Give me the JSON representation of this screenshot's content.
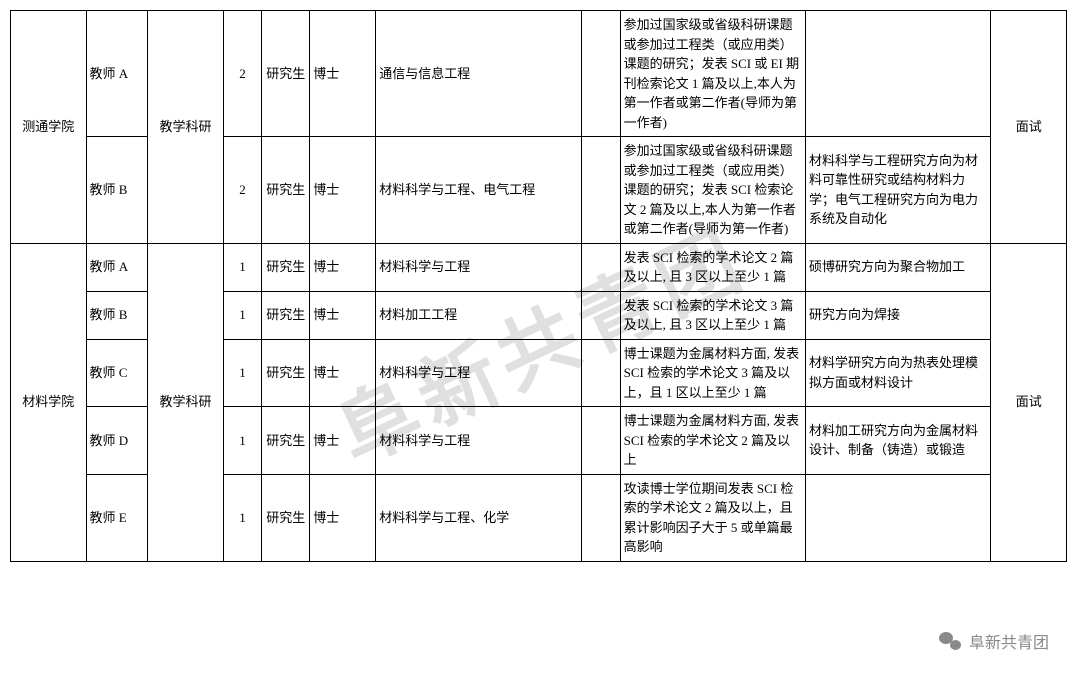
{
  "watermark_text": "阜新共青团",
  "footer_text": "阜新共青团",
  "colgroups": [
    55,
    45,
    55,
    28,
    35,
    48,
    150,
    28,
    135,
    135,
    55
  ],
  "table": {
    "groups": [
      {
        "dept": "测通学院",
        "category": "教学科研",
        "interview": "面试",
        "rows": [
          {
            "role": "教师 A",
            "count": "2",
            "level": "研究生",
            "degree": "博士",
            "major": "通信与信息工程",
            "col7": "",
            "req": "参加过国家级或省级科研课题或参加过工程类（或应用类）课题的研究；发表 SCI 或 EI 期刊检索论文 1 篇及以上,本人为第一作者或第二作者(导师为第一作者)",
            "note": ""
          },
          {
            "role": "教师 B",
            "count": "2",
            "level": "研究生",
            "degree": "博士",
            "major": "材料科学与工程、电气工程",
            "col7": "",
            "req": "参加过国家级或省级科研课题或参加过工程类（或应用类）课题的研究；发表 SCI 检索论文 2 篇及以上,本人为第一作者或第二作者(导师为第一作者)",
            "note": "材料科学与工程研究方向为材料可靠性研究或结构材料力学；电气工程研究方向为电力系统及自动化"
          }
        ]
      },
      {
        "dept": "材料学院",
        "category": "教学科研",
        "interview": "面试",
        "rows": [
          {
            "role": "教师 A",
            "count": "1",
            "level": "研究生",
            "degree": "博士",
            "major": "材料科学与工程",
            "col7": "",
            "req": "发表 SCI 检索的学术论文 2 篇及以上, 且 3 区以上至少 1 篇",
            "note": "硕博研究方向为聚合物加工"
          },
          {
            "role": "教师 B",
            "count": "1",
            "level": "研究生",
            "degree": "博士",
            "major": "材料加工工程",
            "col7": "",
            "req": "发表 SCI 检索的学术论文 3 篇及以上, 且 3 区以上至少 1 篇",
            "note": "研究方向为焊接"
          },
          {
            "role": "教师 C",
            "count": "1",
            "level": "研究生",
            "degree": "博士",
            "major": "材料科学与工程",
            "col7": "",
            "req": "博士课题为金属材料方面, 发表 SCI 检索的学术论文 3 篇及以上，且 1 区以上至少 1 篇",
            "note": "材料学研究方向为热表处理模拟方面或材料设计"
          },
          {
            "role": "教师 D",
            "count": "1",
            "level": "研究生",
            "degree": "博士",
            "major": "材料科学与工程",
            "col7": "",
            "req": "博士课题为金属材料方面, 发表 SCI 检索的学术论文 2 篇及以上",
            "note": "材料加工研究方向为金属材料设计、制备（铸造）或锻造"
          },
          {
            "role": "教师 E",
            "count": "1",
            "level": "研究生",
            "degree": "博士",
            "major": "材料科学与工程、化学",
            "col7": "",
            "req": "攻读博士学位期间发表 SCI 检索的学术论文 2 篇及以上，且累计影响因子大于 5 或单篇最高影响",
            "note": ""
          }
        ]
      }
    ]
  }
}
